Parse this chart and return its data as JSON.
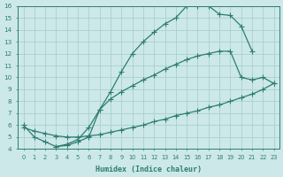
{
  "xlabel": "Humidex (Indice chaleur)",
  "bg_color": "#cce8e8",
  "line_color": "#2e7d72",
  "grid_color": "#aacfcf",
  "xlim": [
    -0.5,
    23.5
  ],
  "ylim": [
    4,
    16
  ],
  "xticks": [
    0,
    1,
    2,
    3,
    4,
    5,
    6,
    7,
    8,
    9,
    10,
    11,
    12,
    13,
    14,
    15,
    16,
    17,
    18,
    19,
    20,
    21,
    22,
    23
  ],
  "yticks": [
    4,
    5,
    6,
    7,
    8,
    9,
    10,
    11,
    12,
    13,
    14,
    15,
    16
  ],
  "top_x": [
    0,
    1,
    2,
    3,
    4,
    5,
    6,
    7,
    8,
    9,
    10,
    11,
    12,
    13,
    14,
    15,
    16,
    17,
    18,
    19,
    20,
    21
  ],
  "top_y": [
    6.0,
    5.0,
    4.6,
    4.2,
    4.3,
    4.6,
    5.0,
    7.3,
    8.8,
    10.5,
    12.0,
    13.0,
    13.8,
    14.5,
    15.0,
    16.0,
    16.0,
    16.0,
    15.3,
    15.2,
    14.3,
    12.2
  ],
  "mid_x": [
    3,
    4,
    5,
    6,
    7,
    8,
    9,
    10,
    11,
    12,
    13,
    14,
    15,
    16,
    17,
    18,
    19,
    20,
    21,
    22,
    23
  ],
  "mid_y": [
    4.2,
    4.4,
    4.8,
    5.8,
    7.3,
    8.2,
    8.8,
    9.3,
    9.8,
    10.2,
    10.7,
    11.1,
    11.5,
    11.8,
    12.0,
    12.2,
    12.2,
    10.0,
    9.8,
    10.0,
    9.5
  ],
  "bot_x": [
    0,
    1,
    2,
    3,
    4,
    5,
    6,
    7,
    8,
    9,
    10,
    11,
    12,
    13,
    14,
    15,
    16,
    17,
    18,
    19,
    20,
    21,
    22,
    23
  ],
  "bot_y": [
    5.8,
    5.5,
    5.3,
    5.1,
    5.0,
    5.0,
    5.1,
    5.2,
    5.4,
    5.6,
    5.8,
    6.0,
    6.3,
    6.5,
    6.8,
    7.0,
    7.2,
    7.5,
    7.7,
    8.0,
    8.3,
    8.6,
    9.0,
    9.5
  ]
}
